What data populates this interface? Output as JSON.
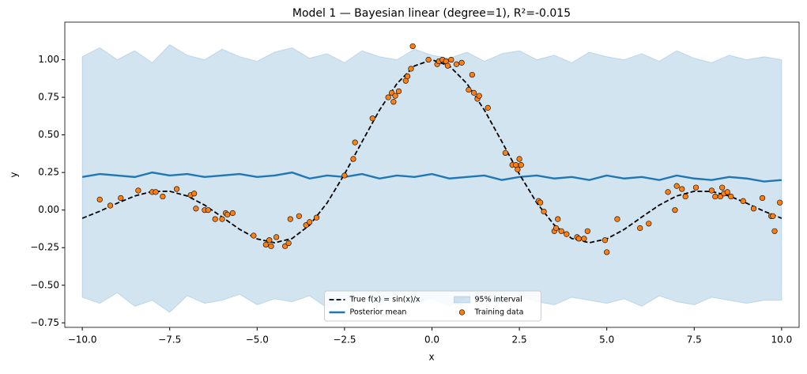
{
  "chart_data": {
    "type": "line",
    "title": "Model 1 — Bayesian linear (degree=1), R²=-0.015",
    "x_label": "x",
    "y_label": "y",
    "xlim": [
      -10.5,
      10.5
    ],
    "ylim": [
      -0.78,
      1.25
    ],
    "xticks": [
      {
        "value": -10,
        "label": "−10.0"
      },
      {
        "value": -7.5,
        "label": "−7.5"
      },
      {
        "value": -5,
        "label": "−5.0"
      },
      {
        "value": -2.5,
        "label": "−2.5"
      },
      {
        "value": 0,
        "label": "0.0"
      },
      {
        "value": 2.5,
        "label": "2.5"
      },
      {
        "value": 5,
        "label": "5.0"
      },
      {
        "value": 7.5,
        "label": "7.5"
      },
      {
        "value": 10,
        "label": "10.0"
      }
    ],
    "yticks": [
      {
        "value": -0.75,
        "label": "−0.75"
      },
      {
        "value": -0.5,
        "label": "−0.50"
      },
      {
        "value": -0.25,
        "label": "−0.25"
      },
      {
        "value": 0,
        "label": "0.00"
      },
      {
        "value": 0.25,
        "label": "0.25"
      },
      {
        "value": 0.5,
        "label": "0.50"
      },
      {
        "value": 0.75,
        "label": "0.75"
      },
      {
        "value": 1,
        "label": "1.00"
      }
    ],
    "legend": "lower center",
    "x": [
      -10,
      -9.5,
      -9,
      -8.5,
      -8,
      -7.5,
      -7,
      -6.5,
      -6,
      -5.5,
      -5,
      -4.5,
      -4,
      -3.5,
      -3,
      -2.5,
      -2,
      -1.5,
      -1,
      -0.5,
      0,
      0.5,
      1,
      1.5,
      2,
      2.5,
      3,
      3.5,
      4,
      4.5,
      5,
      5.5,
      6,
      6.5,
      7,
      7.5,
      8,
      8.5,
      9,
      9.5,
      10
    ],
    "series": [
      {
        "name": "True f(x) = sin(x)/x",
        "color": "#000000",
        "dash": true,
        "values": [
          -0.0544,
          -0.0079,
          0.0458,
          0.0939,
          0.1237,
          0.1251,
          0.0939,
          0.0331,
          -0.0466,
          -0.1283,
          -0.1918,
          -0.2172,
          -0.1892,
          -0.1002,
          0.047,
          0.2394,
          0.4546,
          0.665,
          0.8415,
          0.9589,
          1,
          0.9589,
          0.8415,
          0.665,
          0.4546,
          0.2394,
          0.047,
          -0.1002,
          -0.1892,
          -0.2172,
          -0.1918,
          -0.1283,
          -0.0466,
          0.0331,
          0.0939,
          0.1251,
          0.1237,
          0.0939,
          0.0458,
          -0.0079,
          -0.0544
        ]
      },
      {
        "name": "Posterior mean",
        "color": "#1f77b4",
        "values": [
          0.22,
          0.24,
          0.23,
          0.22,
          0.25,
          0.23,
          0.24,
          0.22,
          0.23,
          0.24,
          0.22,
          0.23,
          0.25,
          0.21,
          0.23,
          0.22,
          0.24,
          0.21,
          0.23,
          0.22,
          0.24,
          0.21,
          0.22,
          0.23,
          0.2,
          0.22,
          0.23,
          0.21,
          0.22,
          0.2,
          0.23,
          0.21,
          0.22,
          0.2,
          0.23,
          0.21,
          0.2,
          0.22,
          0.21,
          0.19,
          0.2
        ]
      }
    ],
    "band": {
      "name": "95% interval",
      "color": "#1f77b4",
      "lower": [
        -0.58,
        -0.62,
        -0.55,
        -0.64,
        -0.6,
        -0.68,
        -0.57,
        -0.62,
        -0.6,
        -0.56,
        -0.63,
        -0.59,
        -0.61,
        -0.57,
        -0.65,
        -0.6,
        -0.58,
        -0.63,
        -0.56,
        -0.62,
        -0.59,
        -0.64,
        -0.58,
        -0.6,
        -0.62,
        -0.57,
        -0.61,
        -0.63,
        -0.58,
        -0.6,
        -0.62,
        -0.59,
        -0.64,
        -0.57,
        -0.61,
        -0.63,
        -0.58,
        -0.6,
        -0.62,
        -0.6,
        -0.6
      ],
      "upper": [
        1.02,
        1.08,
        1.0,
        1.06,
        0.98,
        1.1,
        1.03,
        1.0,
        1.07,
        1.02,
        0.99,
        1.05,
        1.08,
        1.01,
        1.04,
        0.98,
        1.06,
        1.02,
        1.0,
        1.07,
        1.03,
        1.01,
        1.05,
        0.99,
        1.04,
        1.06,
        1.0,
        1.03,
        0.98,
        1.05,
        1.02,
        1.0,
        1.04,
        0.99,
        1.06,
        1.01,
        0.98,
        1.03,
        1.0,
        1.02,
        1.0
      ]
    },
    "scatter": {
      "name": "Training data",
      "color": "#ff7f0e",
      "x": [
        -9.5,
        -9.2,
        -8.9,
        -8.4,
        -8.0,
        -7.9,
        -7.7,
        -7.3,
        -6.9,
        -6.8,
        -6.75,
        -6.5,
        -6.4,
        -6.2,
        -6.0,
        -5.9,
        -5.85,
        -5.7,
        -5.1,
        -4.75,
        -4.65,
        -4.6,
        -4.45,
        -4.2,
        -4.1,
        -4.05,
        -3.8,
        -3.6,
        -3.5,
        -3.3,
        -2.5,
        -2.25,
        -2.2,
        -1.7,
        -1.25,
        -1.15,
        -1.1,
        -1.05,
        -0.95,
        -0.75,
        -0.7,
        -0.6,
        -0.55,
        -0.1,
        0.15,
        0.2,
        0.3,
        0.4,
        0.45,
        0.55,
        0.7,
        0.85,
        1.05,
        1.15,
        1.2,
        1.3,
        1.35,
        1.6,
        2.1,
        2.3,
        2.4,
        2.5,
        2.45,
        2.55,
        3.05,
        3.1,
        3.2,
        3.5,
        3.55,
        3.6,
        3.7,
        3.85,
        4.15,
        4.2,
        4.35,
        4.45,
        4.95,
        5.0,
        5.3,
        5.95,
        6.2,
        6.75,
        7.0,
        6.95,
        7.15,
        7.25,
        7.55,
        8.0,
        8.1,
        8.25,
        8.3,
        8.35,
        8.45,
        8.55,
        8.9,
        9.2,
        9.45,
        9.7,
        9.75,
        9.8,
        9.95
      ],
      "y": [
        0.07,
        0.03,
        0.08,
        0.13,
        0.12,
        0.12,
        0.09,
        0.14,
        0.1,
        0.11,
        0.01,
        0.0,
        0.0,
        -0.06,
        -0.06,
        -0.02,
        -0.03,
        -0.02,
        -0.17,
        -0.23,
        -0.2,
        -0.24,
        -0.18,
        -0.24,
        -0.22,
        -0.06,
        -0.04,
        -0.1,
        -0.08,
        -0.05,
        0.23,
        0.34,
        0.45,
        0.61,
        0.75,
        0.78,
        0.72,
        0.76,
        0.79,
        0.86,
        0.89,
        0.94,
        1.09,
        1.0,
        0.97,
        0.99,
        1.0,
        0.99,
        0.96,
        1.0,
        0.97,
        0.98,
        0.8,
        0.9,
        0.78,
        0.74,
        0.76,
        0.68,
        0.38,
        0.3,
        0.3,
        0.34,
        0.27,
        0.3,
        0.06,
        0.05,
        -0.01,
        -0.14,
        -0.12,
        -0.06,
        -0.14,
        -0.16,
        -0.18,
        -0.19,
        -0.19,
        -0.14,
        -0.2,
        -0.28,
        -0.06,
        -0.12,
        -0.09,
        0.12,
        0.16,
        0.0,
        0.14,
        0.09,
        0.15,
        0.13,
        0.09,
        0.09,
        0.15,
        0.11,
        0.12,
        0.09,
        0.06,
        0.01,
        0.08,
        -0.04,
        -0.04,
        -0.14,
        0.05
      ]
    }
  }
}
